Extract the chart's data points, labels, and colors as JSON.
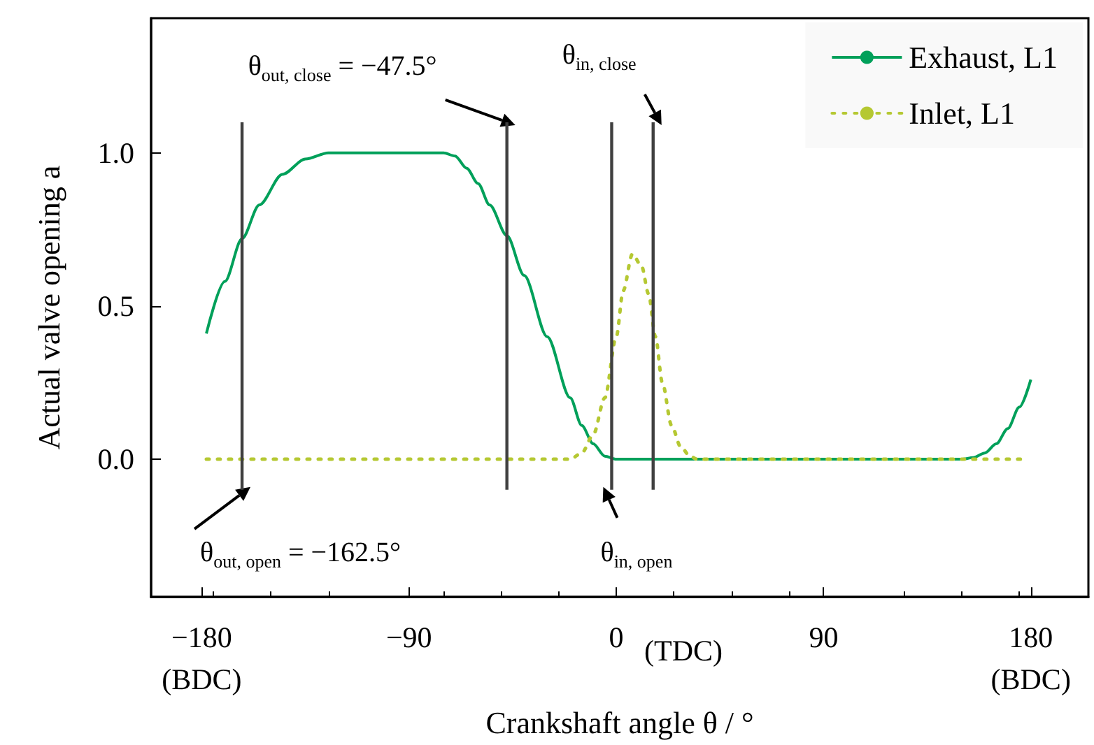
{
  "chart_data": {
    "type": "line",
    "xlabel": "Crankshaft angle θ / °",
    "ylabel": "Actual valve opening a",
    "xlim": [
      -202,
      205
    ],
    "ylim": [
      -0.45,
      1.44
    ],
    "xticks": [
      {
        "value": -180,
        "label": "−180\n(BDC)"
      },
      {
        "value": -90,
        "label": "−90"
      },
      {
        "value": 0,
        "label": "0"
      },
      {
        "value": 90,
        "label": "90"
      },
      {
        "value": 180,
        "label": "180\n(BDC)"
      }
    ],
    "yticks": [
      {
        "value": 0,
        "label": "0.0"
      },
      {
        "value": 0.5,
        "label": "0.5"
      },
      {
        "value": 1,
        "label": "1.0"
      }
    ],
    "grid": false,
    "legend": "top right",
    "series": [
      {
        "name": "Exhaust, L1",
        "color": "#00a05a",
        "line_style": "solid",
        "x": [
          -178,
          -170,
          -162.5,
          -155,
          -145,
          -135,
          -125,
          -110,
          -90,
          -75,
          -70,
          -65,
          -60,
          -55,
          -47.5,
          -40,
          -30,
          -20,
          -15,
          -10,
          -5,
          0,
          90,
          150,
          155,
          160,
          165,
          170,
          175,
          180
        ],
        "values": [
          0.41,
          0.58,
          0.72,
          0.83,
          0.93,
          0.98,
          1.0,
          1.0,
          1.0,
          1.0,
          0.99,
          0.95,
          0.9,
          0.83,
          0.73,
          0.6,
          0.4,
          0.2,
          0.11,
          0.05,
          0.01,
          0,
          0,
          0,
          0.005,
          0.02,
          0.05,
          0.1,
          0.17,
          0.26
        ]
      },
      {
        "name": "Inlet, L1",
        "color": "#b5c832",
        "line_style": "dotted",
        "x": [
          -178,
          -20,
          -15,
          -10,
          -5,
          0,
          3,
          7,
          11,
          14,
          17,
          20,
          24,
          28,
          32,
          35,
          178
        ],
        "values": [
          0,
          0,
          0.02,
          0.08,
          0.2,
          0.4,
          0.55,
          0.67,
          0.63,
          0.54,
          0.4,
          0.25,
          0.11,
          0.04,
          0.01,
          0,
          0
        ]
      }
    ],
    "ref_lines": [
      {
        "axis": "x",
        "value": -162.5,
        "label": "θ$_{out, open}$ = −162.5°",
        "color": "#404040"
      },
      {
        "axis": "x",
        "value": -47.5,
        "label": "θ$_{out, close}$ = −47.5°",
        "color": "#404040"
      },
      {
        "axis": "x",
        "value": -2,
        "label": "θ$_{in, open}$",
        "color": "#404040"
      },
      {
        "axis": "x",
        "value": 16,
        "label": "θ$_{in, close}$",
        "color": "#404040"
      }
    ],
    "annotations": [
      "(TDC)"
    ]
  }
}
